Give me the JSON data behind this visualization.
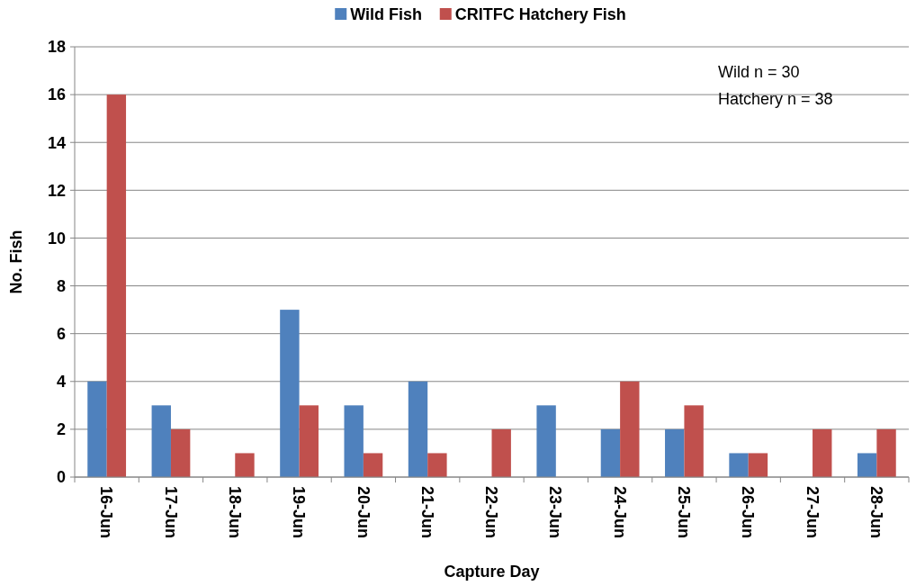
{
  "chart_data": {
    "type": "bar",
    "xlabel": "Capture Day",
    "ylabel": "No. Fish",
    "categories": [
      "16-Jun",
      "17-Jun",
      "18-Jun",
      "19-Jun",
      "20-Jun",
      "21-Jun",
      "22-Jun",
      "23-Jun",
      "24-Jun",
      "25-Jun",
      "26-Jun",
      "27-Jun",
      "28-Jun"
    ],
    "series": [
      {
        "name": "Wild Fish",
        "color": "#4f81bd",
        "values": [
          4,
          3,
          0,
          7,
          3,
          4,
          0,
          3,
          2,
          2,
          1,
          0,
          1
        ]
      },
      {
        "name": "CRITFC Hatchery Fish",
        "color": "#c0504d",
        "values": [
          16,
          2,
          1,
          3,
          1,
          1,
          2,
          0,
          4,
          3,
          1,
          2,
          2
        ]
      }
    ],
    "ylim": [
      0,
      18
    ],
    "yticks": [
      0,
      2,
      4,
      6,
      8,
      10,
      12,
      14,
      16,
      18
    ],
    "grid": "y",
    "legend": "top",
    "annotations": [
      "Wild  n = 30",
      "Hatchery  n = 38"
    ]
  }
}
